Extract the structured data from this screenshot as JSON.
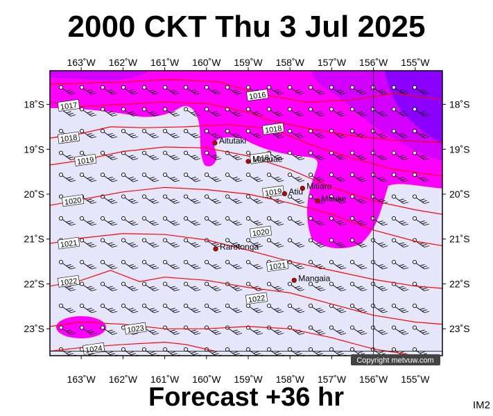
{
  "title": "2000 CKT Thu 3 Jul 2025",
  "footer": "Forecast +36 hr",
  "product_code": "IM2",
  "copyright": "Copyright metvuw.com",
  "colors": {
    "background": "#e6e6fa",
    "rain_moderate": "#ff00ff",
    "rain_heavy": "#d400ff",
    "rain_very_heavy": "#8c00ff",
    "isobar": "#ff0000",
    "frame": "#000000",
    "place_marker": "#cc0000"
  },
  "map": {
    "lon_range": [
      -163.75,
      -154.35
    ],
    "lat_range": [
      -23.6,
      -17.25
    ],
    "lon_ticks": [
      {
        "value": -163,
        "label": "163˚W"
      },
      {
        "value": -162,
        "label": "162˚W"
      },
      {
        "value": -161,
        "label": "161˚W"
      },
      {
        "value": -160,
        "label": "160˚W"
      },
      {
        "value": -159,
        "label": "159˚W"
      },
      {
        "value": -158,
        "label": "158˚W"
      },
      {
        "value": -157,
        "label": "157˚W"
      },
      {
        "value": -156,
        "label": "156˚W"
      },
      {
        "value": -155,
        "label": "155˚W"
      }
    ],
    "lat_ticks": [
      {
        "value": -18,
        "label": "18˚S"
      },
      {
        "value": -19,
        "label": "19˚S"
      },
      {
        "value": -20,
        "label": "20˚S"
      },
      {
        "value": -21,
        "label": "21˚S"
      },
      {
        "value": -22,
        "label": "22˚S"
      },
      {
        "value": -23,
        "label": "23˚S"
      }
    ],
    "reference_lines": {
      "lon": -156,
      "lat": -23.5
    }
  },
  "places": [
    {
      "name": "Aitutaki",
      "lon": -159.8,
      "lat": -18.86
    },
    {
      "name": "Manuae",
      "lon": -159.0,
      "lat": -19.27
    },
    {
      "name": "Atiu",
      "lon": -158.13,
      "lat": -19.99
    },
    {
      "name": "Mitiaro",
      "lon": -157.7,
      "lat": -19.87
    },
    {
      "name": "Mauke",
      "lon": -157.35,
      "lat": -20.15
    },
    {
      "name": "Rarotonga",
      "lon": -159.78,
      "lat": -21.22
    },
    {
      "name": "Mangaia",
      "lon": -157.9,
      "lat": -21.92
    }
  ],
  "isobars": [
    {
      "label": "1016",
      "label_at": [
        -158.78,
        -17.8
      ],
      "points": [
        [
          -163.75,
          -17.55
        ],
        [
          -162,
          -17.5
        ],
        [
          -160.8,
          -17.45
        ],
        [
          -159.7,
          -17.5
        ],
        [
          -158.8,
          -17.75
        ],
        [
          -157.6,
          -17.95
        ],
        [
          -156.5,
          -17.9
        ],
        [
          -155.5,
          -17.75
        ],
        [
          -154.35,
          -17.9
        ]
      ]
    },
    {
      "label": "1017",
      "label_at": [
        -163.3,
        -18.03
      ],
      "points": [
        [
          -163.75,
          -17.95
        ],
        [
          -163,
          -18.05
        ],
        [
          -162,
          -18.0
        ],
        [
          -161,
          -17.95
        ],
        [
          -160,
          -17.98
        ],
        [
          -159,
          -18.18
        ],
        [
          -158.5,
          -18.35
        ],
        [
          -157.5,
          -18.55
        ],
        [
          -156.5,
          -18.7
        ],
        [
          -155.5,
          -18.8
        ],
        [
          -154.35,
          -18.85
        ]
      ]
    },
    {
      "label": "1018",
      "label_at": [
        -158.4,
        -18.55
      ],
      "points": [
        [
          -163.75,
          -18.75
        ],
        [
          -163,
          -18.65
        ],
        [
          -162.3,
          -18.5
        ],
        [
          -161.5,
          -18.52
        ],
        [
          -160.5,
          -18.5
        ],
        [
          -159.5,
          -18.45
        ],
        [
          -158.4,
          -18.55
        ],
        [
          -157.5,
          -18.9
        ],
        [
          -156.5,
          -19.2
        ],
        [
          -155.5,
          -19.45
        ],
        [
          -154.35,
          -19.6
        ]
      ]
    },
    {
      "label": "1018",
      "label_at": [
        -163.3,
        -18.75
      ]
    },
    {
      "label": "1019",
      "label_at": [
        -162.9,
        -19.25
      ],
      "points": [
        [
          -163.75,
          -19.35
        ],
        [
          -163,
          -19.25
        ],
        [
          -162,
          -19.05
        ],
        [
          -161,
          -18.95
        ],
        [
          -160,
          -18.97
        ],
        [
          -159,
          -19.15
        ],
        [
          -158,
          -19.45
        ],
        [
          -157,
          -19.85
        ],
        [
          -156,
          -20.15
        ],
        [
          -155,
          -20.35
        ],
        [
          -154.35,
          -20.45
        ]
      ]
    },
    {
      "label": "1018",
      "label_at": [
        -158.7,
        -19.2
      ]
    },
    {
      "label": "1019",
      "label_at": [
        -158.4,
        -19.95
      ]
    },
    {
      "label": "1020",
      "label_at": [
        -163.2,
        -20.15
      ],
      "points": [
        [
          -163.75,
          -20.25
        ],
        [
          -163,
          -20.12
        ],
        [
          -162,
          -19.95
        ],
        [
          -161,
          -19.85
        ],
        [
          -160,
          -19.9
        ],
        [
          -159,
          -20.0
        ],
        [
          -158,
          -20.2
        ],
        [
          -157,
          -20.45
        ],
        [
          -156,
          -20.8
        ],
        [
          -155,
          -21.05
        ],
        [
          -154.35,
          -21.15
        ]
      ]
    },
    {
      "label": "1020",
      "label_at": [
        -158.7,
        -20.85
      ]
    },
    {
      "label": "1021",
      "label_at": [
        -163.3,
        -21.1
      ],
      "points": [
        [
          -163.75,
          -21.1
        ],
        [
          -163,
          -20.98
        ],
        [
          -162,
          -20.88
        ],
        [
          -161,
          -20.9
        ],
        [
          -160,
          -21.02
        ],
        [
          -159,
          -21.25
        ],
        [
          -158,
          -21.5
        ],
        [
          -157,
          -21.7
        ],
        [
          -156,
          -21.9
        ],
        [
          -155,
          -22.05
        ],
        [
          -154.35,
          -22.1
        ]
      ]
    },
    {
      "label": "1021",
      "label_at": [
        -158.3,
        -21.6
      ]
    },
    {
      "label": "1022",
      "label_at": [
        -163.3,
        -21.95
      ],
      "points": [
        [
          -163.75,
          -22.05
        ],
        [
          -163,
          -21.92
        ],
        [
          -162.3,
          -21.7
        ],
        [
          -161.6,
          -21.95
        ],
        [
          -161,
          -21.85
        ],
        [
          -160,
          -21.92
        ],
        [
          -159,
          -22.08
        ],
        [
          -158,
          -22.2
        ],
        [
          -157,
          -22.45
        ],
        [
          -156,
          -22.7
        ],
        [
          -155,
          -22.85
        ],
        [
          -154.35,
          -22.9
        ]
      ]
    },
    {
      "label": "1022",
      "label_at": [
        -158.8,
        -22.33
      ]
    },
    {
      "label": "1023",
      "label_at": [
        -161.7,
        -23.0
      ],
      "points": [
        [
          -163.75,
          -22.95
        ],
        [
          -163,
          -22.85
        ],
        [
          -162,
          -22.9
        ],
        [
          -161,
          -23.0
        ],
        [
          -160,
          -23.0
        ],
        [
          -159,
          -22.95
        ],
        [
          -158,
          -23.0
        ],
        [
          -157,
          -23.2
        ],
        [
          -156,
          -23.45
        ],
        [
          -155,
          -23.6
        ]
      ]
    },
    {
      "label": "1024",
      "label_at": [
        -162.7,
        -23.45
      ],
      "points": [
        [
          -163.75,
          -23.5
        ],
        [
          -163,
          -23.42
        ],
        [
          -162,
          -23.35
        ],
        [
          -161,
          -23.3
        ],
        [
          -160.5,
          -23.35
        ],
        [
          -159.8,
          -23.5
        ]
      ]
    }
  ]
}
